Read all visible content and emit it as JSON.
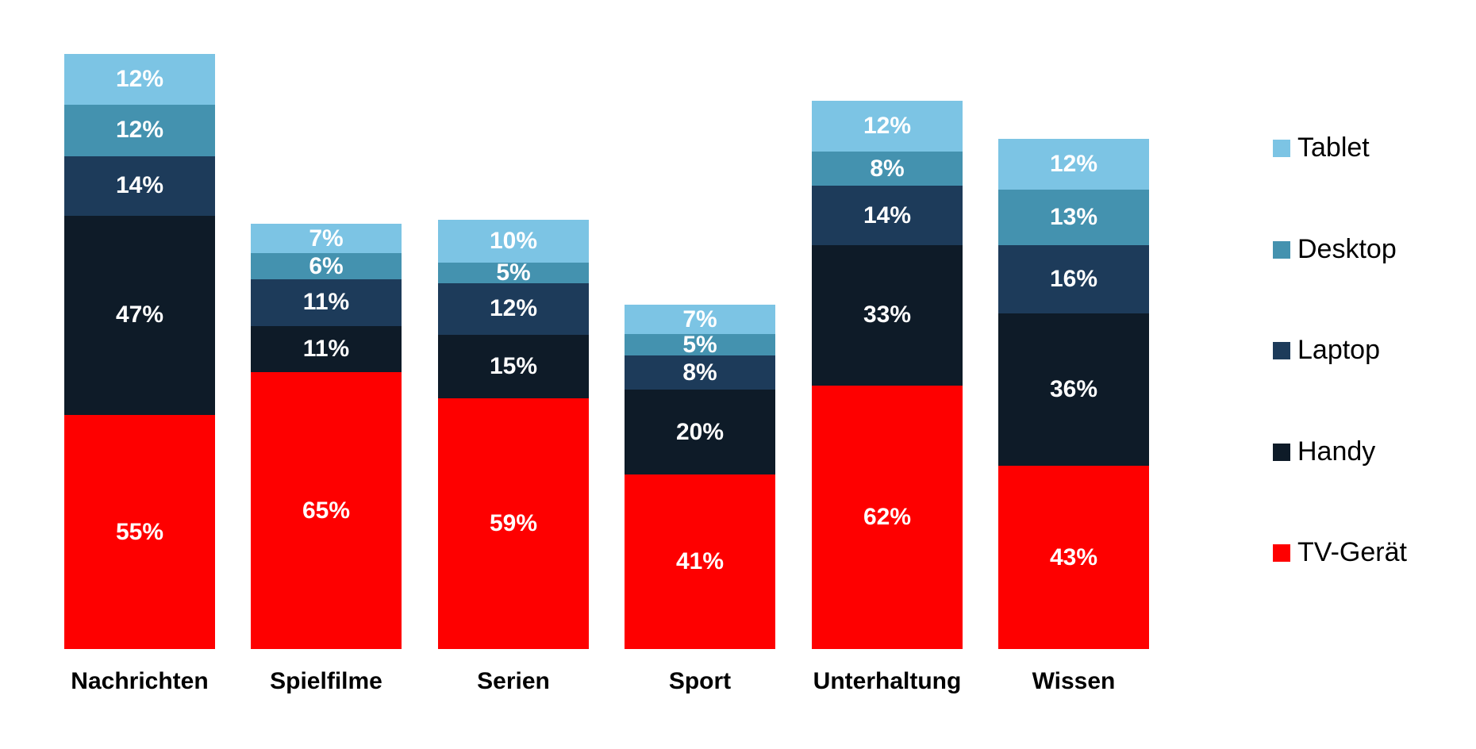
{
  "chart_data": {
    "type": "bar",
    "subtype": "stacked-column",
    "title": "",
    "unit": "%",
    "grid": false,
    "axes_visible": false,
    "legend_position": "right",
    "value_labels": "inside-center-white-bold",
    "background": "#ffffff",
    "categories": [
      "Nachrichten",
      "Spielfilme",
      "Serien",
      "Sport",
      "Unterhaltung",
      "Wissen"
    ],
    "series": [
      {
        "name": "Tablet",
        "color": "#7cc4e4",
        "values": [
          12,
          7,
          10,
          7,
          12,
          12
        ]
      },
      {
        "name": "Desktop",
        "color": "#4492af",
        "values": [
          12,
          6,
          5,
          5,
          8,
          13
        ]
      },
      {
        "name": "Laptop",
        "color": "#1d3b5a",
        "values": [
          14,
          11,
          12,
          8,
          14,
          16
        ]
      },
      {
        "name": "Handy",
        "color": "#0e1b28",
        "values": [
          47,
          11,
          15,
          20,
          33,
          36
        ]
      },
      {
        "name": "TV-Gerät",
        "color": "#fe0000",
        "values": [
          55,
          65,
          59,
          41,
          62,
          43
        ]
      }
    ],
    "category_totals": [
      140,
      100,
      101,
      81,
      129,
      120
    ],
    "text_colors": {
      "segment_label": "#ffffff",
      "category_label": "#000000",
      "legend_label": "#000000"
    }
  }
}
